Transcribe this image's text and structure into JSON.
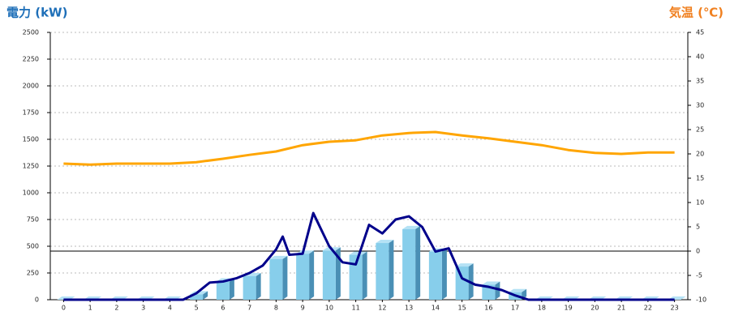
{
  "chart_data": {
    "type": "combo",
    "title": "電力 (kW)",
    "y2_title": "気温 (℃)",
    "xlim": [
      -0.5,
      23.5
    ],
    "xticks": [
      0,
      1,
      2,
      3,
      4,
      5,
      6,
      7,
      8,
      9,
      10,
      11,
      12,
      13,
      14,
      15,
      16,
      17,
      18,
      19,
      20,
      21,
      22,
      23
    ],
    "ylim": [
      0,
      2500
    ],
    "yticks": [
      0,
      250,
      500,
      750,
      1000,
      1250,
      1500,
      1750,
      2000,
      2250,
      2500
    ],
    "y2lim": [
      -10,
      45
    ],
    "y2ticks": [
      -10,
      -5,
      0,
      5,
      10,
      15,
      20,
      25,
      30,
      35,
      40,
      45
    ],
    "grid": true,
    "y2_zero_line": true,
    "series": [
      {
        "type": "bar",
        "color": "#87ceeb",
        "x": [
          0,
          1,
          2,
          3,
          4,
          5,
          6,
          7,
          8,
          9,
          10,
          11,
          12,
          13,
          14,
          15,
          16,
          17,
          18,
          19,
          20,
          21,
          22,
          23
        ],
        "values": [
          0,
          0,
          0,
          0,
          0,
          50,
          170,
          220,
          380,
          430,
          460,
          420,
          530,
          660,
          450,
          310,
          140,
          70,
          0,
          0,
          0,
          0,
          0,
          0
        ]
      },
      {
        "type": "line",
        "color": "#00008b",
        "x": [
          0,
          0.5,
          1,
          1.5,
          2,
          2.5,
          3,
          3.5,
          4,
          4.5,
          5,
          5.5,
          6,
          6.5,
          7,
          7.5,
          8,
          8.25,
          8.5,
          9,
          9.4,
          10,
          10.5,
          11,
          11.5,
          12,
          12.5,
          13,
          13.5,
          14,
          14.5,
          15,
          15.5,
          16,
          16.5,
          17,
          17.5,
          18,
          19,
          20,
          21,
          22,
          23
        ],
        "values": [
          0,
          0,
          0,
          0,
          0,
          0,
          0,
          0,
          0,
          0,
          60,
          160,
          170,
          200,
          250,
          320,
          470,
          590,
          420,
          430,
          810,
          500,
          350,
          330,
          700,
          620,
          750,
          780,
          680,
          450,
          480,
          200,
          140,
          120,
          90,
          40,
          0,
          0,
          0,
          0,
          0,
          0,
          0
        ]
      },
      {
        "type": "line",
        "axis": "y2",
        "color": "#ffa500",
        "x": [
          0,
          1,
          2,
          3,
          4,
          5,
          6,
          7,
          8,
          9,
          10,
          11,
          12,
          13,
          14,
          15,
          16,
          17,
          18,
          19,
          20,
          21,
          22,
          23
        ],
        "values": [
          18,
          17.8,
          18,
          18,
          18,
          18.3,
          19,
          19.8,
          20.5,
          21.8,
          22.5,
          22.8,
          23.8,
          24.3,
          24.5,
          23.8,
          23.2,
          22.5,
          21.8,
          20.8,
          20.2,
          20,
          20.3,
          20.3
        ]
      }
    ]
  }
}
